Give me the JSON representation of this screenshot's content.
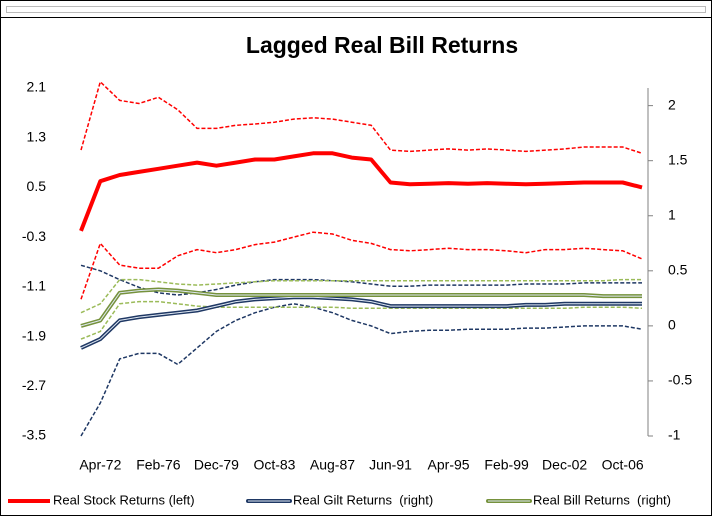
{
  "chart_data": {
    "type": "line",
    "title": "Lagged Real Bill Returns",
    "categories": [
      null,
      "Apr-72",
      null,
      null,
      "Feb-76",
      null,
      null,
      "Dec-79",
      null,
      null,
      "Oct-83",
      null,
      null,
      "Aug-87",
      null,
      null,
      "Jun-91",
      null,
      null,
      "Apr-95",
      null,
      null,
      "Feb-99",
      null,
      null,
      "Dec-02",
      null,
      null,
      "Oct-06",
      null
    ],
    "ylim": [
      -3.5,
      2.1
    ],
    "yticks": [
      -3.5,
      -2.7,
      -1.9,
      -1.1,
      -0.3,
      0.5,
      1.3,
      2.1
    ],
    "y2lim": [
      -1,
      2.16
    ],
    "y2ticks": [
      -1,
      -0.5,
      0,
      0.5,
      1,
      1.5,
      2
    ],
    "legend": "bottom",
    "series": [
      {
        "color": "#ff0000",
        "style": "dashed",
        "values": [
          1.1,
          2.2,
          1.9,
          1.85,
          1.95,
          1.75,
          1.45,
          1.45,
          1.5,
          1.52,
          1.55,
          1.6,
          1.62,
          1.6,
          1.55,
          1.5,
          1.1,
          1.08,
          1.1,
          1.12,
          1.1,
          1.12,
          1.1,
          1.08,
          1.1,
          1.12,
          1.15,
          1.15,
          1.15,
          1.05
        ]
      },
      {
        "color": "#ff0000",
        "style": "dashed",
        "values": [
          -1.3,
          -0.4,
          -0.75,
          -0.8,
          -0.8,
          -0.6,
          -0.5,
          -0.55,
          -0.5,
          -0.42,
          -0.38,
          -0.3,
          -0.22,
          -0.25,
          -0.35,
          -0.4,
          -0.5,
          -0.52,
          -0.5,
          -0.48,
          -0.5,
          -0.5,
          -0.52,
          -0.55,
          -0.5,
          -0.5,
          -0.48,
          -0.5,
          -0.52,
          -0.65
        ]
      },
      {
        "color": "#1f3864",
        "style": "dashed",
        "axis": "y2",
        "values": [
          0.55,
          0.5,
          0.42,
          0.35,
          0.3,
          0.28,
          0.3,
          0.33,
          0.37,
          0.4,
          0.42,
          0.42,
          0.42,
          0.41,
          0.4,
          0.38,
          0.36,
          0.36,
          0.37,
          0.37,
          0.37,
          0.37,
          0.37,
          0.38,
          0.38,
          0.38,
          0.39,
          0.39,
          0.39,
          0.39
        ]
      },
      {
        "color": "#1f3864",
        "style": "dashed",
        "axis": "y2",
        "values": [
          -1.0,
          -0.7,
          -0.3,
          -0.25,
          -0.25,
          -0.35,
          -0.2,
          -0.05,
          0.05,
          0.12,
          0.17,
          0.2,
          0.17,
          0.12,
          0.05,
          0.0,
          -0.07,
          -0.05,
          -0.04,
          -0.04,
          -0.03,
          -0.03,
          -0.03,
          -0.02,
          -0.02,
          -0.01,
          0,
          0,
          0,
          -0.03
        ]
      },
      {
        "color": "#9bbb59",
        "style": "dashed",
        "axis": "y2",
        "values": [
          0.12,
          0.2,
          0.42,
          0.42,
          0.4,
          0.38,
          0.37,
          0.38,
          0.39,
          0.4,
          0.41,
          0.41,
          0.41,
          0.41,
          0.41,
          0.41,
          0.41,
          0.41,
          0.41,
          0.41,
          0.41,
          0.41,
          0.41,
          0.41,
          0.41,
          0.41,
          0.41,
          0.41,
          0.42,
          0.42
        ]
      },
      {
        "color": "#9bbb59",
        "style": "dashed",
        "axis": "y2",
        "values": [
          -0.12,
          -0.05,
          0.2,
          0.22,
          0.22,
          0.2,
          0.18,
          0.17,
          0.17,
          0.17,
          0.17,
          0.17,
          0.17,
          0.17,
          0.16,
          0.16,
          0.16,
          0.16,
          0.16,
          0.16,
          0.16,
          0.16,
          0.16,
          0.16,
          0.16,
          0.16,
          0.17,
          0.17,
          0.17,
          0.16
        ]
      },
      {
        "name": "Real Stock Returns (left)",
        "color": "#ff0000",
        "style": "solid",
        "values": [
          -0.2,
          0.6,
          0.7,
          0.75,
          0.8,
          0.85,
          0.9,
          0.85,
          0.9,
          0.95,
          0.95,
          1.0,
          1.05,
          1.05,
          0.98,
          0.95,
          0.58,
          0.55,
          0.56,
          0.57,
          0.56,
          0.57,
          0.56,
          0.55,
          0.56,
          0.57,
          0.58,
          0.58,
          0.58,
          0.5
        ]
      },
      {
        "name": "Real Gilt Returns  (right)",
        "color": "#1f3864",
        "style": "double",
        "axis": "y2",
        "values": [
          -0.2,
          -0.12,
          0.05,
          0.08,
          0.1,
          0.12,
          0.14,
          0.18,
          0.22,
          0.24,
          0.25,
          0.26,
          0.26,
          0.25,
          0.24,
          0.22,
          0.18,
          0.18,
          0.18,
          0.18,
          0.18,
          0.18,
          0.18,
          0.19,
          0.19,
          0.2,
          0.2,
          0.2,
          0.2,
          0.2
        ]
      },
      {
        "name": "Real Bill Returns  (right)",
        "color": "#76923c",
        "style": "double",
        "axis": "y2",
        "values": [
          0.0,
          0.05,
          0.3,
          0.32,
          0.33,
          0.32,
          0.3,
          0.28,
          0.28,
          0.28,
          0.28,
          0.28,
          0.28,
          0.28,
          0.28,
          0.28,
          0.28,
          0.28,
          0.28,
          0.28,
          0.28,
          0.28,
          0.28,
          0.28,
          0.28,
          0.28,
          0.28,
          0.27,
          0.27,
          0.27
        ]
      }
    ]
  }
}
